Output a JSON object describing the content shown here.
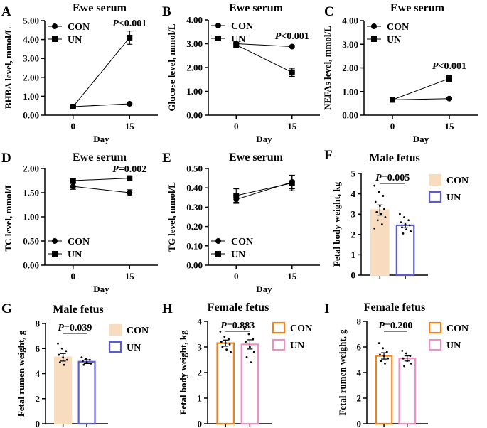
{
  "figure": {
    "colors": {
      "con_bar": "#f7dcc0",
      "un_bar_male": "#5b5bd6",
      "con_bar_female": "#f0821e",
      "un_bar_female": "#ef8fc3",
      "line": "#000000"
    }
  },
  "chart_data": [
    {
      "id": "A",
      "type": "line",
      "title": "Ewe serum",
      "xlabel": "Day",
      "ylabel": "BHBA level, mmol/L",
      "categories": [
        "0",
        "15"
      ],
      "ylim": [
        0,
        5
      ],
      "yticks": [
        "0.00",
        "1.00",
        "2.00",
        "3.00",
        "4.00",
        "5.00"
      ],
      "series": [
        {
          "name": "CON",
          "marker": "circle",
          "values": [
            0.45,
            0.6
          ],
          "errors": [
            0.06,
            0.04
          ]
        },
        {
          "name": "UN",
          "marker": "square",
          "values": [
            0.45,
            4.1
          ],
          "errors": [
            0.06,
            0.35
          ]
        }
      ],
      "annotation": {
        "prefix": "P",
        "text": "<0.001",
        "x": 15,
        "y": 4.7
      },
      "legend": "top-left"
    },
    {
      "id": "B",
      "type": "line",
      "title": "Ewe serum",
      "xlabel": "Day",
      "ylabel": "Glucose level, mmol/L",
      "categories": [
        "0",
        "15"
      ],
      "ylim": [
        0,
        4
      ],
      "yticks": [
        "0.00",
        "1.00",
        "2.00",
        "3.00",
        "4.00"
      ],
      "series": [
        {
          "name": "CON",
          "marker": "circle",
          "values": [
            3.0,
            2.88
          ],
          "errors": [
            0.05,
            0.05
          ]
        },
        {
          "name": "UN",
          "marker": "square",
          "values": [
            2.95,
            1.8
          ],
          "errors": [
            0.07,
            0.17
          ]
        }
      ],
      "annotation": {
        "prefix": "P",
        "text": "<0.001",
        "x": 15,
        "y": 3.2
      },
      "legend": "top-left"
    },
    {
      "id": "C",
      "type": "line",
      "title": "Ewe serum",
      "xlabel": "Day",
      "ylabel": "NEFAs level, mmol/L",
      "categories": [
        "0",
        "15"
      ],
      "ylim": [
        0,
        4
      ],
      "yticks": [
        "0.00",
        "1.00",
        "2.00",
        "3.00",
        "4.00"
      ],
      "series": [
        {
          "name": "CON",
          "marker": "circle",
          "values": [
            0.65,
            0.7
          ],
          "errors": [
            0.04,
            0.04
          ]
        },
        {
          "name": "UN",
          "marker": "square",
          "values": [
            0.65,
            1.55
          ],
          "errors": [
            0.04,
            0.12
          ]
        }
      ],
      "annotation": {
        "prefix": "P",
        "text": "<0.001",
        "x": 15,
        "y": 1.95
      },
      "legend": "top-left"
    },
    {
      "id": "D",
      "type": "line",
      "title": "Ewe serum",
      "xlabel": "Day",
      "ylabel": "TC level, mmol/L",
      "categories": [
        "0",
        "15"
      ],
      "ylim": [
        0,
        2
      ],
      "yticks": [
        "0.00",
        "0.50",
        "1.00",
        "1.50",
        "2.00"
      ],
      "series": [
        {
          "name": "CON",
          "marker": "circle",
          "values": [
            1.63,
            1.5
          ],
          "errors": [
            0.06,
            0.06
          ]
        },
        {
          "name": "UN",
          "marker": "square",
          "values": [
            1.75,
            1.8
          ],
          "errors": [
            0.04,
            0.04
          ]
        }
      ],
      "annotation": {
        "prefix": "P",
        "text": "=0.002",
        "x": 15,
        "y": 1.93
      },
      "legend": "bottom-left"
    },
    {
      "id": "E",
      "type": "line",
      "title": "Ewe serum",
      "xlabel": "Day",
      "ylabel": "TG level, mmol/L",
      "categories": [
        "0",
        "15"
      ],
      "ylim": [
        0,
        0.5
      ],
      "yticks": [
        "0.00",
        "0.10",
        "0.20",
        "0.30",
        "0.40",
        "0.50"
      ],
      "series": [
        {
          "name": "CON",
          "marker": "circle",
          "values": [
            0.34,
            0.43
          ],
          "errors": [
            0.02,
            0.035
          ]
        },
        {
          "name": "UN",
          "marker": "square",
          "values": [
            0.36,
            0.425
          ],
          "errors": [
            0.035,
            0.04
          ]
        }
      ],
      "annotation": null,
      "legend": "bottom-left"
    },
    {
      "id": "F",
      "type": "bar",
      "title": "Male fetus",
      "xlabel": "",
      "ylabel": "Fetal body weight, kg",
      "categories": [
        "CON",
        "UN"
      ],
      "ylim": [
        0,
        5
      ],
      "yticks": [
        "0",
        "1",
        "2",
        "3",
        "4",
        "5"
      ],
      "series": [
        {
          "name": "CON",
          "value": 3.2,
          "error": 0.25,
          "points": [
            4.4,
            4.1,
            3.9,
            3.6,
            3.4,
            3.25,
            3.1,
            3.0,
            2.85,
            2.7,
            2.5,
            2.3
          ]
        },
        {
          "name": "UN",
          "value": 2.45,
          "error": 0.12,
          "points": [
            3.0,
            2.85,
            2.7,
            2.6,
            2.5,
            2.45,
            2.35,
            2.25,
            2.15,
            2.05
          ]
        }
      ],
      "annotation": {
        "prefix": "P",
        "text": "=0.005"
      },
      "palette": "male"
    },
    {
      "id": "G",
      "type": "bar",
      "title": "Male fetus",
      "xlabel": "",
      "ylabel": "Fetal rumen weight, g",
      "categories": [
        "CON",
        "UN"
      ],
      "ylim": [
        0,
        8
      ],
      "yticks": [
        "0",
        "2",
        "4",
        "6",
        "8"
      ],
      "series": [
        {
          "name": "CON",
          "value": 5.3,
          "error": 0.3,
          "points": [
            6.4,
            6.0,
            5.8,
            5.5,
            5.3,
            5.1,
            4.9,
            4.7
          ]
        },
        {
          "name": "UN",
          "value": 4.95,
          "error": 0.15,
          "points": [
            5.3,
            5.2,
            5.1,
            5.0,
            4.9,
            4.8,
            4.7
          ]
        }
      ],
      "annotation": {
        "prefix": "P",
        "text": "=0.039"
      },
      "palette": "male"
    },
    {
      "id": "H",
      "type": "bar",
      "title": "Female fetus",
      "xlabel": "",
      "ylabel": "Fetal body weight, kg",
      "categories": [
        "CON",
        "UN"
      ],
      "ylim": [
        0,
        4
      ],
      "yticks": [
        "0",
        "1",
        "2",
        "3",
        "4"
      ],
      "series": [
        {
          "name": "CON",
          "value": 3.15,
          "error": 0.12,
          "points": [
            3.6,
            3.4,
            3.3,
            3.2,
            3.15,
            3.1,
            3.0,
            2.9,
            2.8
          ]
        },
        {
          "name": "UN",
          "value": 3.1,
          "error": 0.18,
          "points": [
            3.7,
            3.5,
            3.3,
            3.2,
            3.0,
            2.8,
            2.6,
            2.4
          ]
        }
      ],
      "annotation": {
        "prefix": "P",
        "text": "=0.883"
      },
      "palette": "female"
    },
    {
      "id": "I",
      "type": "bar",
      "title": "Female fetus",
      "xlabel": "",
      "ylabel": "Fetal rumen weight, g",
      "categories": [
        "CON",
        "UN"
      ],
      "ylim": [
        0,
        8
      ],
      "yticks": [
        "0",
        "2",
        "4",
        "6",
        "8"
      ],
      "series": [
        {
          "name": "CON",
          "value": 5.3,
          "error": 0.25,
          "points": [
            6.3,
            5.9,
            5.6,
            5.4,
            5.3,
            5.1,
            4.9,
            4.7
          ]
        },
        {
          "name": "UN",
          "value": 5.1,
          "error": 0.2,
          "points": [
            5.7,
            5.5,
            5.3,
            5.1,
            4.9,
            4.7,
            4.5
          ]
        }
      ],
      "annotation": {
        "prefix": "P",
        "text": "=0.200"
      },
      "palette": "female"
    }
  ]
}
